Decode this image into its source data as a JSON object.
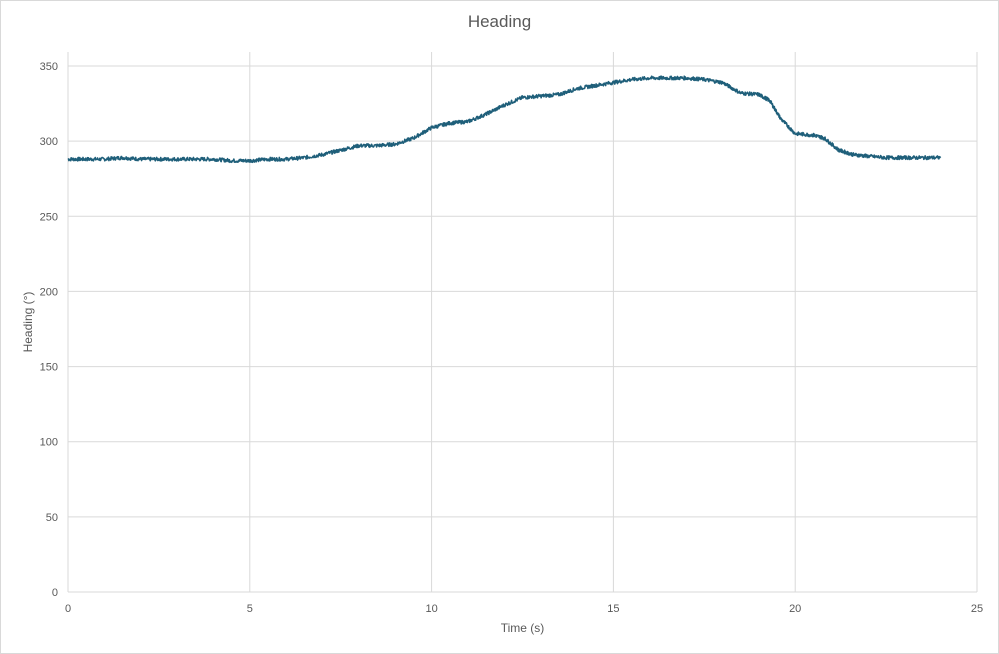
{
  "chart_data": {
    "type": "line",
    "title": "Heading",
    "xlabel": "Time (s)",
    "ylabel": "Heading (°)",
    "xlim": [
      0,
      25
    ],
    "ylim": [
      0,
      350
    ],
    "xticks": [
      0,
      5,
      10,
      15,
      20,
      25
    ],
    "yticks": [
      0,
      50,
      100,
      150,
      200,
      250,
      300,
      350
    ],
    "grid": true,
    "legend": "none",
    "series": [
      {
        "color": "#1f5f7a",
        "x": [
          0,
          0.5,
          1,
          1.5,
          2,
          2.5,
          3,
          3.5,
          4,
          4.5,
          5,
          5.5,
          6,
          6.5,
          7,
          7.5,
          8,
          8.5,
          9,
          9.5,
          10,
          10.5,
          11,
          11.5,
          12,
          12.5,
          13,
          13.5,
          14,
          14.5,
          15,
          15.5,
          16,
          16.5,
          17,
          17.5,
          18,
          18.5,
          19,
          19.3,
          19.6,
          20,
          20.5,
          20.8,
          21.2,
          21.6,
          22,
          22.5,
          23,
          23.5,
          24
        ],
        "y": [
          288,
          288,
          288,
          289,
          288,
          288,
          288,
          288,
          288,
          287,
          287,
          288,
          288,
          289,
          291,
          294,
          297,
          297,
          298,
          302,
          309,
          312,
          313,
          318,
          324,
          329,
          330,
          331,
          335,
          337,
          339,
          341,
          342,
          342,
          342,
          341,
          339,
          332,
          331,
          327,
          315,
          305,
          304,
          302,
          294,
          291,
          290,
          289,
          289,
          289,
          289
        ]
      }
    ]
  }
}
